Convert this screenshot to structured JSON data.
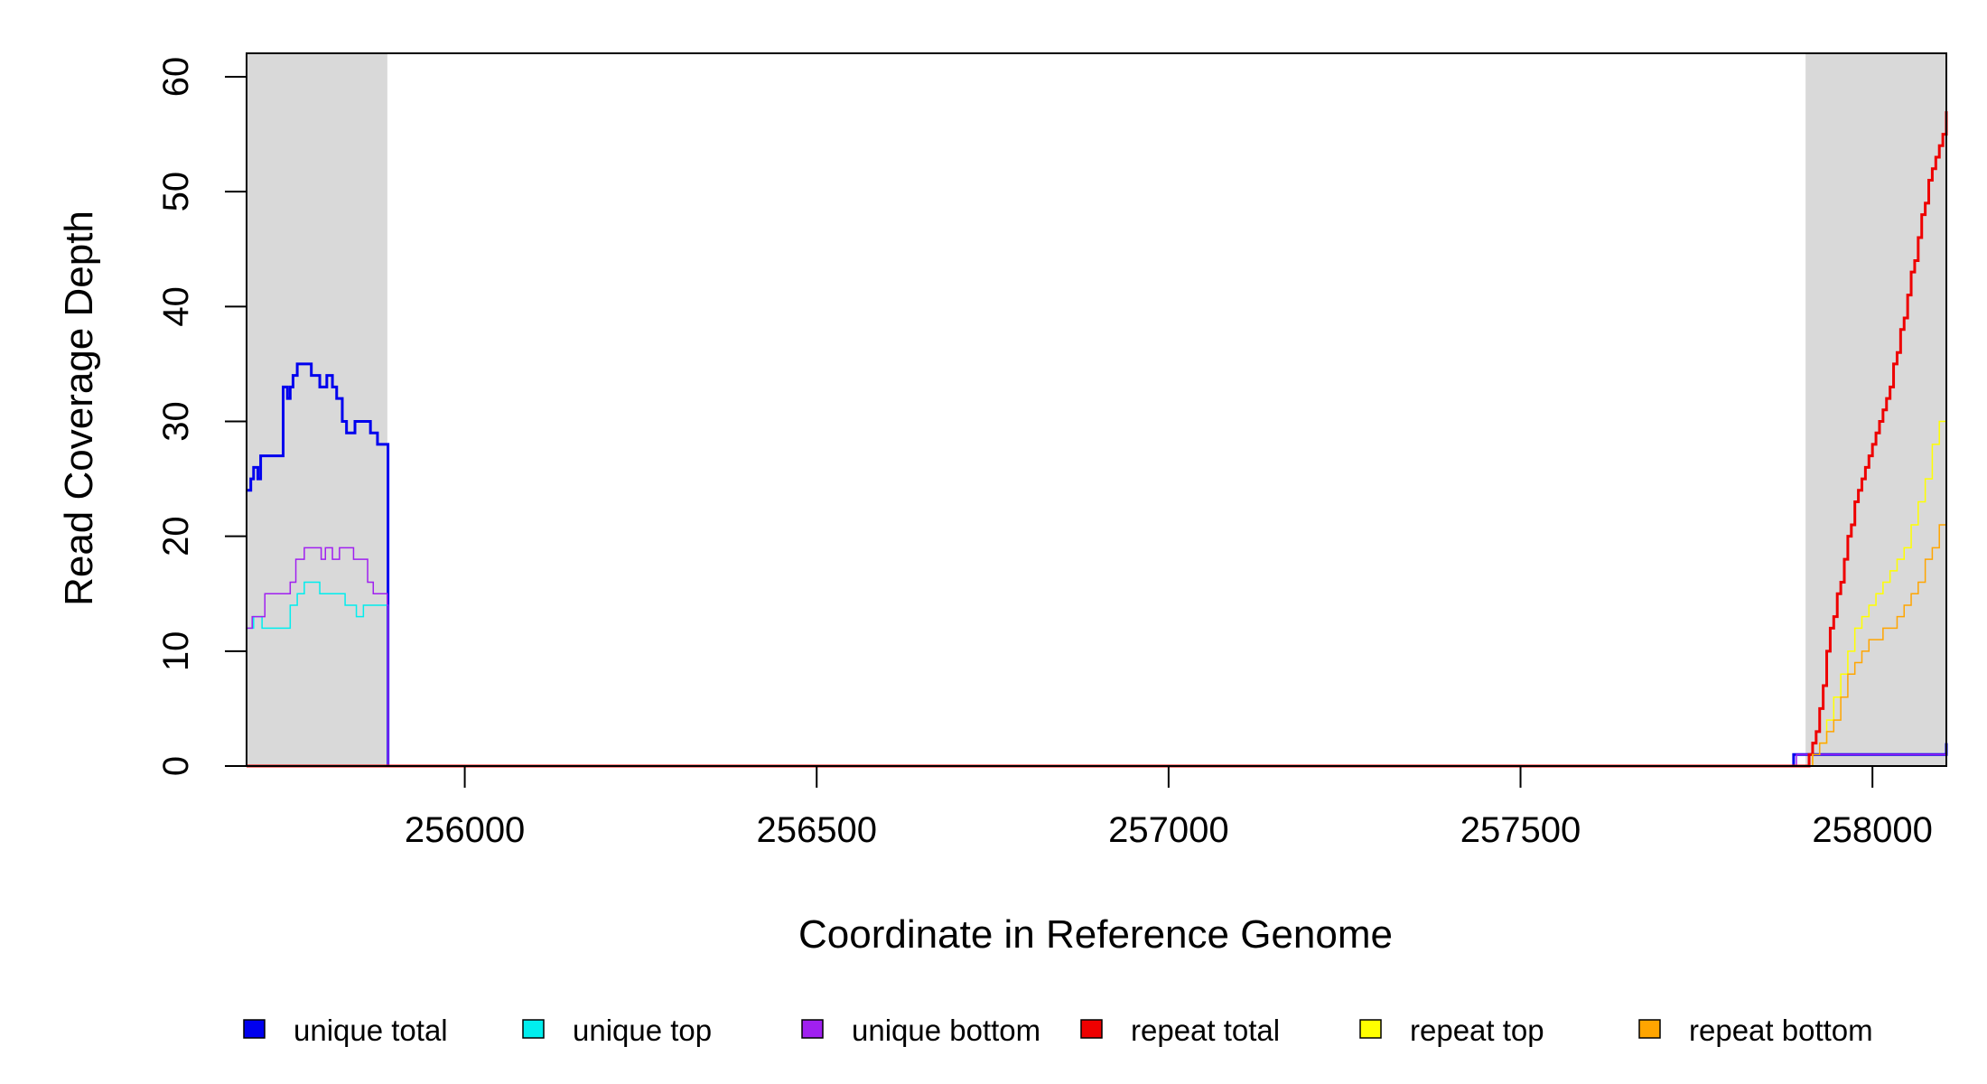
{
  "chart_data": {
    "type": "line",
    "xlabel": "Coordinate in Reference Genome",
    "ylabel": "Read Coverage Depth",
    "xlim": [
      255690,
      258105
    ],
    "ylim": [
      0,
      62
    ],
    "xticks": [
      256000,
      256500,
      257000,
      257500,
      258000
    ],
    "yticks": [
      0,
      10,
      20,
      30,
      40,
      50,
      60
    ],
    "xtick_labels": [
      "256000",
      "256500",
      "257000",
      "257500",
      "258000"
    ],
    "ytick_labels": [
      "0",
      "10",
      "20",
      "30",
      "40",
      "50",
      "60"
    ],
    "shaded_regions": [
      [
        255690,
        255890
      ],
      [
        257905,
        258105
      ]
    ],
    "grid": false,
    "legend_position": "bottom",
    "series": [
      {
        "name": "unique total",
        "color": "#0000ee",
        "x": [
          255690,
          255696,
          255700,
          255706,
          255710,
          255716,
          255742,
          255748,
          255752,
          255756,
          255762,
          255772,
          255782,
          255794,
          255804,
          255812,
          255818,
          255826,
          255832,
          255840,
          255844,
          255854,
          255866,
          255870,
          255876,
          255882,
          255890,
          255891,
          257880,
          257888,
          258105
        ],
        "y": [
          24,
          25,
          26,
          25,
          27,
          27,
          33,
          32,
          33,
          34,
          35,
          35,
          34,
          33,
          34,
          33,
          32,
          30,
          29,
          29,
          30,
          30,
          29,
          29,
          28,
          28,
          28,
          0,
          0,
          1,
          2
        ]
      },
      {
        "name": "unique top",
        "color": "#00eeee",
        "x": [
          255690,
          255700,
          255712,
          255744,
          255752,
          255762,
          255772,
          255784,
          255794,
          255812,
          255818,
          255830,
          255846,
          255856,
          255870,
          255884,
          255890,
          255891,
          258105
        ],
        "y": [
          12,
          13,
          12,
          12,
          14,
          15,
          16,
          16,
          15,
          15,
          15,
          14,
          13,
          14,
          14,
          14,
          14,
          0,
          0
        ]
      },
      {
        "name": "unique bottom",
        "color": "#a020f0",
        "x": [
          255690,
          255698,
          255708,
          255716,
          255744,
          255752,
          255760,
          255772,
          255790,
          255796,
          255802,
          255812,
          255822,
          255836,
          255842,
          255862,
          255870,
          255890,
          255891,
          257880,
          257892,
          258105
        ],
        "y": [
          12,
          13,
          13,
          15,
          15,
          16,
          18,
          19,
          19,
          18,
          19,
          18,
          19,
          19,
          18,
          16,
          15,
          14,
          0,
          0,
          1,
          1
        ]
      },
      {
        "name": "repeat total",
        "color": "#ee0000",
        "x": [
          255690,
          257905,
          257910,
          257915,
          257920,
          257925,
          257930,
          257935,
          257940,
          257945,
          257950,
          257955,
          257960,
          257965,
          257970,
          257975,
          257980,
          257985,
          257990,
          257995,
          258000,
          258005,
          258010,
          258015,
          258020,
          258025,
          258030,
          258035,
          258040,
          258045,
          258050,
          258055,
          258060,
          258065,
          258070,
          258075,
          258080,
          258085,
          258090,
          258095,
          258100,
          258105
        ],
        "y": [
          0,
          0,
          1,
          2,
          3,
          5,
          7,
          10,
          12,
          13,
          15,
          16,
          18,
          20,
          21,
          23,
          24,
          25,
          26,
          27,
          28,
          29,
          30,
          31,
          32,
          33,
          35,
          36,
          38,
          39,
          41,
          43,
          44,
          46,
          48,
          49,
          51,
          52,
          53,
          54,
          55,
          57
        ]
      },
      {
        "name": "repeat top",
        "color": "#ffff00",
        "x": [
          255690,
          257905,
          257915,
          257925,
          257935,
          257945,
          257955,
          257965,
          257975,
          257985,
          257995,
          258005,
          258015,
          258025,
          258035,
          258045,
          258055,
          258065,
          258075,
          258085,
          258095,
          258105
        ],
        "y": [
          0,
          0,
          1,
          2,
          4,
          6,
          8,
          10,
          12,
          13,
          14,
          15,
          16,
          17,
          18,
          19,
          21,
          23,
          25,
          28,
          30,
          32
        ]
      },
      {
        "name": "repeat bottom",
        "color": "#ffa500",
        "x": [
          255690,
          257905,
          257915,
          257925,
          257935,
          257945,
          257955,
          257965,
          257975,
          257985,
          257995,
          258005,
          258015,
          258025,
          258035,
          258045,
          258055,
          258065,
          258075,
          258085,
          258095,
          258105
        ],
        "y": [
          0,
          0,
          1,
          2,
          3,
          4,
          6,
          8,
          9,
          10,
          11,
          11,
          12,
          12,
          13,
          14,
          15,
          16,
          18,
          19,
          21,
          24
        ]
      }
    ]
  }
}
